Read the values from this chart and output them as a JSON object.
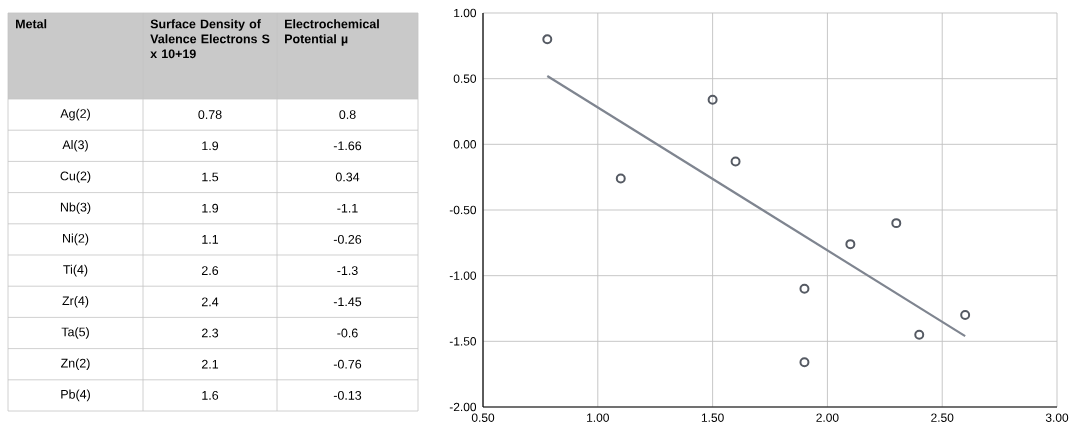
{
  "chart_data": [
    {
      "type": "other",
      "categories": [
        "Metal",
        "Surface Density of Valence Electrons S x 10+19",
        "Electrochemical Potential µ"
      ],
      "annotations": [
        "Ag(2)",
        "0.78",
        "0.8",
        "Al(3)",
        "1.9",
        "-1.66",
        "Cu(2)",
        "1.5",
        "0.34",
        "Nb(3)",
        "1.9",
        "-1.1",
        "Ni(2)",
        "1.1",
        "-0.26",
        "Ti(4)",
        "2.6",
        "-1.3",
        "Zr(4)",
        "2.4",
        "-1.45",
        "Ta(5)",
        "2.3",
        "-0.6",
        "Zn(2)",
        "2.1",
        "-0.76",
        "Pb(4)",
        "1.6",
        "-0.13"
      ]
    },
    {
      "type": "scatter",
      "series": [
        {
          "type": "scatter",
          "marker": "circle",
          "color": "#555a63",
          "x": [
            0.78,
            1.9,
            1.5,
            1.9,
            1.1,
            2.6,
            2.4,
            2.3,
            2.1,
            1.6
          ],
          "values": [
            0.8,
            -1.66,
            0.34,
            -1.1,
            -0.26,
            -1.3,
            -1.45,
            -0.6,
            -0.76,
            -0.13
          ]
        },
        {
          "type": "line",
          "marker": "none",
          "color": "#7f8590",
          "x": [
            0.78,
            2.6
          ],
          "values": [
            0.52,
            -1.46
          ]
        }
      ],
      "xlim": [
        0.5,
        3.0
      ],
      "xticks": [
        {
          "value": 0.5,
          "label": "0.50"
        },
        {
          "value": 1.0,
          "label": "1.00"
        },
        {
          "value": 1.5,
          "label": "1.50"
        },
        {
          "value": 2.0,
          "label": "2.00"
        },
        {
          "value": 2.5,
          "label": "2.50"
        },
        {
          "value": 3.0,
          "label": "3.00"
        }
      ],
      "ylim": [
        -2.0,
        1.0
      ],
      "yticks": [
        {
          "value": -2.0,
          "label": "-2.00"
        },
        {
          "value": -1.5,
          "label": "-1.50"
        },
        {
          "value": -1.0,
          "label": "-1.00"
        },
        {
          "value": -0.5,
          "label": "-0.50"
        },
        {
          "value": 0.0,
          "label": "0.00"
        },
        {
          "value": 0.5,
          "label": "0.50"
        },
        {
          "value": 1.0,
          "label": "1.00"
        }
      ],
      "grid": true
    }
  ]
}
